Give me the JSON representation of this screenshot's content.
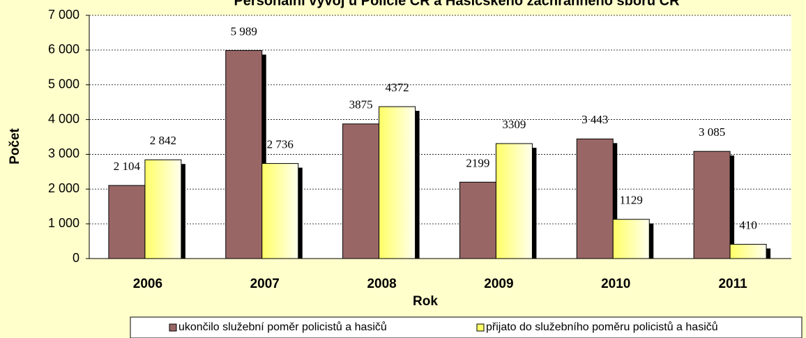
{
  "chart_data": {
    "type": "bar",
    "title": "Personální vývoj u Policie ČR a Hasičského záchranného sboru ČR",
    "x_label": "Rok",
    "y_label": "Počet",
    "categories": [
      "2006",
      "2007",
      "2008",
      "2009",
      "2010",
      "2011"
    ],
    "series": [
      {
        "name": "ukončilo služební poměr policistů a hasičů",
        "color": "#996666",
        "values": [
          2104,
          5989,
          3875,
          2199,
          3443,
          3085
        ],
        "value_labels": [
          "2 104",
          "5 989",
          "3875",
          "2199",
          "3 443",
          "3 085"
        ]
      },
      {
        "name": "přijato do služebního poměru policistů a hasičů",
        "color": "#ffff66",
        "values": [
          2842,
          2736,
          4372,
          3309,
          1129,
          410
        ],
        "value_labels": [
          "2 842",
          "2 736",
          "4372",
          "3309",
          "1129",
          "410"
        ]
      }
    ],
    "ylim": [
      0,
      7000
    ],
    "yticks": [
      0,
      {
        "value": 1000,
        "label": "1 000"
      },
      {
        "value": 2000,
        "label": "2 000"
      },
      {
        "value": 3000,
        "label": "3 000"
      },
      {
        "value": 4000,
        "label": "4 000"
      },
      {
        "value": 5000,
        "label": "5 000"
      },
      {
        "value": 6000,
        "label": "6 000"
      },
      {
        "value": 7000,
        "label": "7 000"
      }
    ],
    "grid": true,
    "legend": "bottom"
  }
}
